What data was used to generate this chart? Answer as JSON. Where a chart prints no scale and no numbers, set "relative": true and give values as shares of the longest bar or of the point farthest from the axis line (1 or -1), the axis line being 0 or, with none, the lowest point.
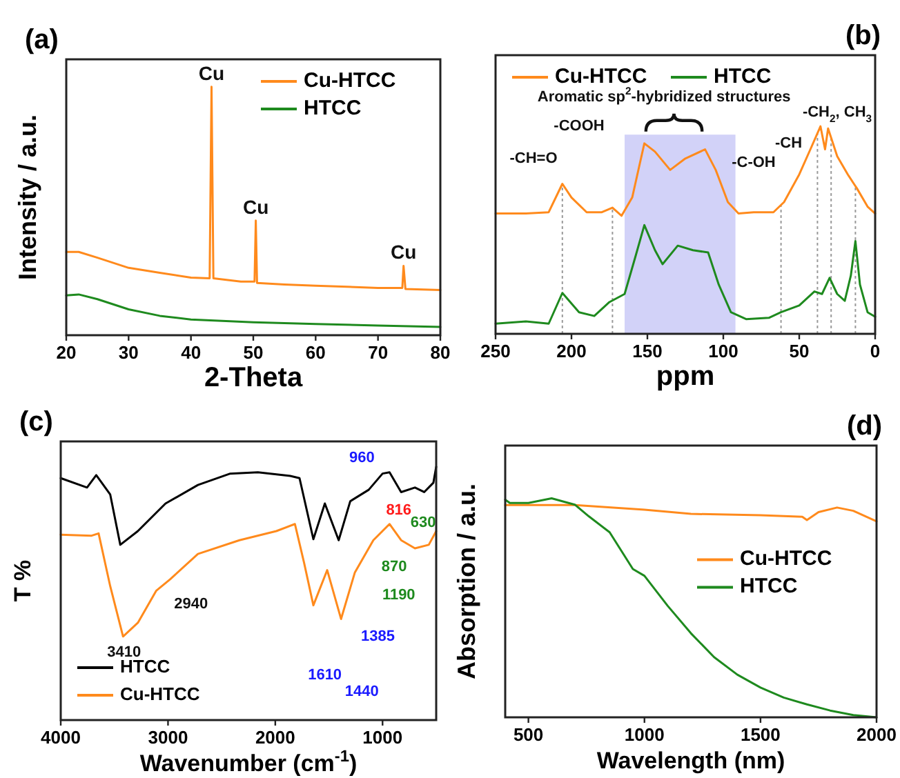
{
  "chart_data": [
    {
      "type": "line",
      "title": "(a)",
      "xlabel": "2-Theta",
      "ylabel": "Intensity / a.u.",
      "relative": true,
      "xlim": [
        20,
        80
      ],
      "xticks": [
        20,
        30,
        40,
        50,
        60,
        70,
        80
      ],
      "legend": "top right",
      "series": [
        {
          "name": "Cu-HTCC",
          "color": "#ff8a1c",
          "x": [
            20,
            22,
            25,
            30,
            35,
            40,
            43,
            43.3,
            43.6,
            48,
            50.2,
            50.4,
            50.6,
            55,
            60,
            65,
            70,
            73.9,
            74.1,
            74.4,
            80
          ],
          "values": [
            0.335,
            0.335,
            0.312,
            0.271,
            0.251,
            0.232,
            0.229,
            1.0,
            0.229,
            0.216,
            0.216,
            0.461,
            0.21,
            0.204,
            0.199,
            0.195,
            0.19,
            0.19,
            0.279,
            0.186,
            0.182
          ]
        },
        {
          "name": "HTCC",
          "color": "#1e8a1e",
          "x": [
            20,
            22,
            25,
            30,
            35,
            40,
            50,
            60,
            70,
            80
          ],
          "values": [
            0.16,
            0.164,
            0.145,
            0.104,
            0.078,
            0.063,
            0.052,
            0.045,
            0.039,
            0.033
          ]
        }
      ],
      "annotations": [
        {
          "text": "Cu",
          "x": 43.3,
          "y": 1.0
        },
        {
          "text": "Cu",
          "x": 50.4,
          "y": 0.461
        },
        {
          "text": "Cu",
          "x": 74.1,
          "y": 0.279
        }
      ]
    },
    {
      "type": "line",
      "title": "(b)",
      "xlabel": "ppm",
      "relative": true,
      "xlim": [
        250,
        0
      ],
      "xticks": [
        250,
        200,
        150,
        100,
        50,
        0
      ],
      "legend": "top left",
      "series": [
        {
          "name": "Cu-HTCC",
          "color": "#ff8a1c",
          "x": [
            250,
            230,
            215,
            206,
            200,
            190,
            180,
            173,
            167,
            160,
            152,
            145,
            135,
            125,
            112,
            105,
            97,
            90,
            80,
            67,
            60,
            50,
            42,
            36,
            33,
            31,
            25,
            18,
            14,
            12,
            5,
            0
          ],
          "values": [
            0.58,
            0.58,
            0.586,
            0.723,
            0.657,
            0.586,
            0.586,
            0.608,
            0.569,
            0.657,
            0.918,
            0.878,
            0.79,
            0.845,
            0.889,
            0.79,
            0.635,
            0.58,
            0.586,
            0.586,
            0.635,
            0.768,
            0.9,
            1.0,
            0.889,
            0.99,
            0.856,
            0.768,
            0.723,
            0.701,
            0.613,
            0.58
          ]
        },
        {
          "name": "HTCC",
          "color": "#1e8a1e",
          "x": [
            250,
            230,
            215,
            206,
            195,
            185,
            175,
            165,
            158,
            152,
            145,
            140,
            130,
            120,
            110,
            103,
            95,
            85,
            70,
            62,
            50,
            40,
            35,
            30,
            25,
            20,
            16,
            13,
            10,
            5,
            0
          ],
          "values": [
            0.049,
            0.06,
            0.049,
            0.197,
            0.104,
            0.086,
            0.153,
            0.192,
            0.369,
            0.524,
            0.403,
            0.336,
            0.425,
            0.403,
            0.392,
            0.237,
            0.104,
            0.071,
            0.077,
            0.104,
            0.137,
            0.204,
            0.192,
            0.27,
            0.192,
            0.159,
            0.281,
            0.447,
            0.237,
            0.104,
            0.082
          ]
        }
      ],
      "bands": [
        {
          "axis": "x",
          "from": 165,
          "to": 92,
          "color": "#d2d2f8"
        }
      ],
      "ref_lines": [
        {
          "axis": "x",
          "value": 206,
          "color": "#999999",
          "line_style": "dotted"
        },
        {
          "axis": "x",
          "value": 173,
          "color": "#999999",
          "line_style": "dotted"
        },
        {
          "axis": "x",
          "value": 62,
          "color": "#999999",
          "line_style": "dotted"
        },
        {
          "axis": "x",
          "value": 38,
          "color": "#999999",
          "line_style": "dotted"
        },
        {
          "axis": "x",
          "value": 29,
          "color": "#999999",
          "line_style": "dotted"
        },
        {
          "axis": "x",
          "value": 13,
          "color": "#999999",
          "line_style": "dotted"
        }
      ],
      "annotations": [
        "Aromatic sp$^{2}$-hybridized structures",
        "-CH=O",
        "-COOH",
        "-C-OH",
        "-CH",
        "-CH$_{2}$, CH$_{3}$"
      ]
    },
    {
      "type": "line",
      "title": "(c)",
      "xlabel": "Wavenumber (cm$^{-1}$)",
      "ylabel": "T %",
      "relative": true,
      "xlim": [
        4000,
        500
      ],
      "xticks": [
        4000,
        3000,
        2000,
        1000
      ],
      "legend": "bottom left",
      "series": [
        {
          "name": "HTCC",
          "color": "#000000",
          "x": [
            4000,
            3755,
            3669,
            3539,
            3445,
            3281,
            3023,
            2721,
            2420,
            2162,
            1861,
            1774,
            1645,
            1538,
            1409,
            1301,
            1129,
            1000,
            935,
            827,
            698,
            612,
            526,
            500
          ],
          "values": [
            0.955,
            0.918,
            0.967,
            0.891,
            0.692,
            0.746,
            0.855,
            0.928,
            0.973,
            0.978,
            0.964,
            0.955,
            0.714,
            0.855,
            0.71,
            0.864,
            0.909,
            0.973,
            0.978,
            0.9,
            0.918,
            0.9,
            0.937,
            1.0
          ]
        },
        {
          "name": "Cu-HTCC",
          "color": "#ff8a1c",
          "x": [
            4000,
            3712,
            3647,
            3539,
            3419,
            3281,
            3109,
            2980,
            2721,
            2334,
            1990,
            1817,
            1731,
            1645,
            1516,
            1387,
            1258,
            1086,
            935,
            827,
            698,
            569,
            500
          ],
          "values": [
            0.732,
            0.728,
            0.737,
            0.529,
            0.33,
            0.384,
            0.511,
            0.556,
            0.656,
            0.71,
            0.746,
            0.774,
            0.62,
            0.453,
            0.592,
            0.399,
            0.583,
            0.71,
            0.774,
            0.71,
            0.678,
            0.692,
            0.746
          ]
        }
      ],
      "annotations": [
        "3410",
        "2940",
        "1610",
        "1440",
        "1385",
        "960",
        "816",
        "630",
        "870",
        "1190"
      ]
    },
    {
      "type": "line",
      "title": "(d)",
      "xlabel": "Wavelength (nm)",
      "ylabel": "Absorption / a.u.",
      "relative": true,
      "xlim": [
        400,
        2000
      ],
      "xticks": [
        500,
        1000,
        1500,
        2000
      ],
      "legend": "right",
      "series": [
        {
          "name": "Cu-HTCC",
          "color": "#ff8a1c",
          "x": [
            400,
            700,
            1000,
            1200,
            1500,
            1680,
            1700,
            1750,
            1830,
            1900,
            2000
          ],
          "values": [
            0.969,
            0.969,
            0.948,
            0.929,
            0.923,
            0.916,
            0.901,
            0.937,
            0.958,
            0.943,
            0.895
          ]
        },
        {
          "name": "HTCC",
          "color": "#1e8a1e",
          "x": [
            400,
            420,
            500,
            600,
            700,
            760,
            850,
            950,
            1000,
            1100,
            1200,
            1300,
            1400,
            1500,
            1600,
            1700,
            1800,
            1900,
            2000
          ],
          "values": [
            0.994,
            0.979,
            0.979,
            1.0,
            0.971,
            0.918,
            0.845,
            0.677,
            0.646,
            0.509,
            0.384,
            0.275,
            0.195,
            0.136,
            0.09,
            0.059,
            0.031,
            0.01,
            0
          ]
        }
      ]
    }
  ]
}
